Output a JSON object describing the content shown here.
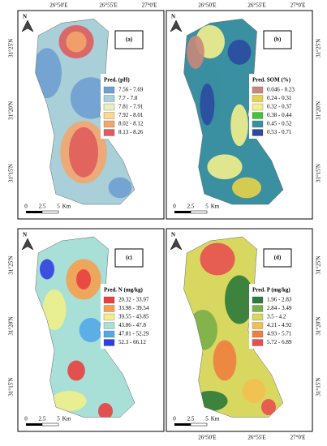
{
  "lon_labels": [
    "26°50'E",
    "26°55'E",
    "27°0'E"
  ],
  "lat_labels": [
    "31°25'N",
    "31°20'N",
    "31°15'N"
  ],
  "north": "N",
  "scale": [
    "0",
    "2.5",
    "5",
    "Km"
  ],
  "panels": [
    {
      "label": "(a)",
      "legend_title": "Pred. (pH)",
      "entries": [
        "7.56 - 7.69",
        "7.7 - 7.8",
        "7.81 - 7.91",
        "7.92 - 8.01",
        "8.02 - 8.12",
        "8.13 - 8.26"
      ],
      "colors": [
        "#6f9fd2",
        "#a9cfd9",
        "#e9efbf",
        "#f8da92",
        "#f2a56c",
        "#e05c5c"
      ]
    },
    {
      "label": "(b)",
      "legend_title": "Pred. SOM (%)",
      "entries": [
        "0.046 - 0.23",
        "0.24 - 0.31",
        "0.32 - 0.37",
        "0.38 - 0.44",
        "0.45 - 0.52",
        "0.53 - 0.71"
      ],
      "colors": [
        "#c8877a",
        "#e6d24a",
        "#f2ef8c",
        "#41c43b",
        "#3a8fa0",
        "#2b4aa0"
      ]
    },
    {
      "label": "(c)",
      "legend_title": "Pred. N (mg/kg)",
      "entries": [
        "20.32 - 33.97",
        "33.98 - 39.54",
        "39.55 - 43.85",
        "43.86 - 47.8",
        "47.81 - 52.29",
        "52.3 - 66.12"
      ],
      "colors": [
        "#e84040",
        "#f5a050",
        "#eff08a",
        "#a8e0d8",
        "#52a8e8",
        "#3040e0"
      ]
    },
    {
      "label": "(d)",
      "legend_title": "Pred. P (mg/kg)",
      "entries": [
        "1.96 - 2.83",
        "2.84 - 3.49",
        "3.5 - 4.2",
        "4.21 - 4.92",
        "4.93 - 5.71",
        "5.72 - 6.89"
      ],
      "colors": [
        "#2e7a3a",
        "#7ab04a",
        "#d8d860",
        "#f2c050",
        "#f08040",
        "#e85050"
      ]
    }
  ]
}
